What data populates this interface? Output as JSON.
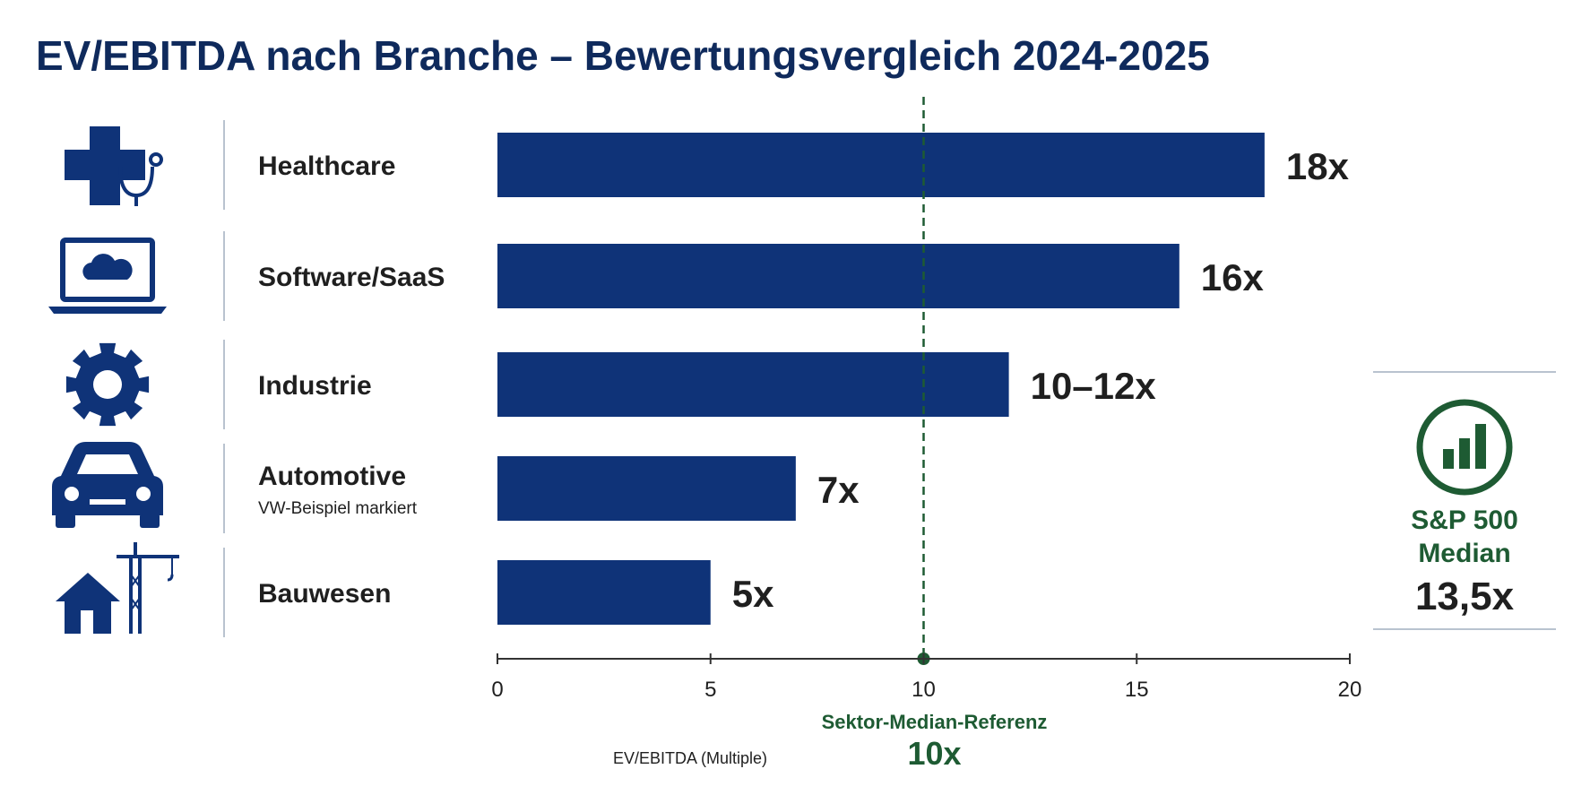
{
  "colors": {
    "bar": "#0f3378",
    "title": "#0f2a5c",
    "text": "#1f1f1f",
    "median": "#1e5b33",
    "divider": "#b9c3cf",
    "axis": "#333333"
  },
  "chart_data": {
    "type": "bar",
    "orientation": "horizontal",
    "title": "EV/EBITDA nach Branche – Bewertungsvergleich 2024-2025",
    "xlabel": "EV/EBITDA (Multiple)",
    "xlim": [
      0,
      20
    ],
    "xticks": [
      "0",
      "5",
      "10",
      "15",
      "20"
    ],
    "categories": [
      "Healthcare",
      "Software/SaaS",
      "Industrie",
      "Automotive",
      "Bauwesen"
    ],
    "values": [
      18,
      16,
      12,
      7,
      5
    ],
    "value_labels": [
      "18x",
      "16x",
      "10–12x",
      "7x",
      "5x"
    ],
    "sublabels": [
      "",
      "",
      "",
      "VW-Beispiel markiert",
      ""
    ],
    "icons": [
      "medical-cross-stethoscope-icon",
      "laptop-cloud-icon",
      "gear-icon",
      "car-icon",
      "house-crane-icon"
    ],
    "reference_line": {
      "value": 10,
      "label": "Sektor-Median-Referenz",
      "value_label": "10x"
    },
    "side_panel": {
      "icon": "bar-chart-circle-icon",
      "label_line1": "S&P 500",
      "label_line2": "Median",
      "value": "13,5x"
    }
  }
}
